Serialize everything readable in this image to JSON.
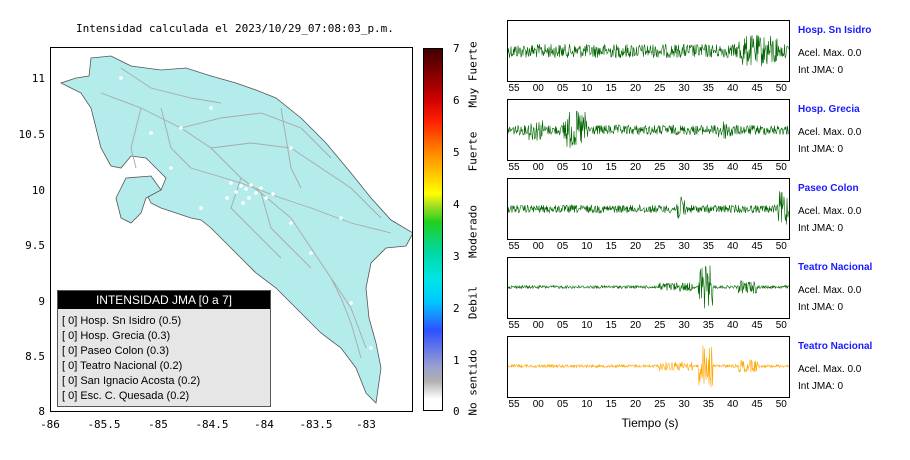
{
  "map": {
    "title": "Intensidad calculada el 2023/10/29_07:08:03_p.m.",
    "y_ticks": [
      "11",
      "10.5",
      "10",
      "9.5",
      "9",
      "8.5",
      "8"
    ],
    "x_ticks": [
      "-86",
      "-85.5",
      "-85",
      "-84.5",
      "-84",
      "-83.5",
      "-83"
    ],
    "land_color": "#b4ecec",
    "road_color": "#a8a8a8"
  },
  "legend": {
    "title": "INTENSIDAD JMA [0 a 7]",
    "items": [
      "[ 0] Hosp. Sn Isidro (0.5)",
      "[ 0] Hosp. Grecia (0.3)",
      "[ 0] Paseo Colon (0.3)",
      "[ 0] Teatro Nacional (0.2)",
      "[ 0] San Ignacio Acosta (0.2)",
      "[ 0] Esc. C. Quesada (0.2)"
    ]
  },
  "colorbar": {
    "ticks": [
      "7",
      "6",
      "5",
      "4",
      "3",
      "2",
      "1",
      "0"
    ],
    "labels": [
      "Muy Fuerte",
      "Fuerte",
      "Moderado",
      "Debil",
      "No sentido"
    ]
  },
  "stations": [
    {
      "name": "Hosp. Sn Isidro",
      "acel": "Acel. Max. 0.0",
      "int": "Int JMA: 0",
      "color": "#006400",
      "ticks": [
        "55",
        "00",
        "05",
        "10",
        "15",
        "20",
        "25",
        "30",
        "35",
        "40",
        "45",
        "50"
      ]
    },
    {
      "name": "Hosp. Grecia",
      "acel": "Acel. Max. 0.0",
      "int": "Int JMA: 0",
      "color": "#006400",
      "ticks": [
        "55",
        "00",
        "05",
        "10",
        "15",
        "20",
        "25",
        "30",
        "35",
        "40",
        "45",
        "50"
      ]
    },
    {
      "name": "Paseo Colon",
      "acel": "Acel. Max. 0.0",
      "int": "Int JMA: 0",
      "color": "#006400",
      "ticks": [
        "55",
        "00",
        "05",
        "10",
        "15",
        "20",
        "25",
        "30",
        "35",
        "40",
        "45",
        "50"
      ]
    },
    {
      "name": "Teatro Nacional",
      "acel": "Acel. Max. 0.0",
      "int": "Int JMA: 0",
      "color": "#006400",
      "ticks": [
        "55",
        "00",
        "05",
        "10",
        "15",
        "20",
        "25",
        "30",
        "35",
        "40",
        "45",
        "50"
      ]
    },
    {
      "name": "Teatro Nacional",
      "acel": "Acel. Max. 0.0",
      "int": "Int JMA: 0",
      "color": "#ffa500",
      "ticks": [
        "55",
        "00",
        "05",
        "10",
        "15",
        "20",
        "25",
        "30",
        "35",
        "40",
        "45",
        "50"
      ]
    }
  ],
  "xlabel": "Tiempo (s)"
}
